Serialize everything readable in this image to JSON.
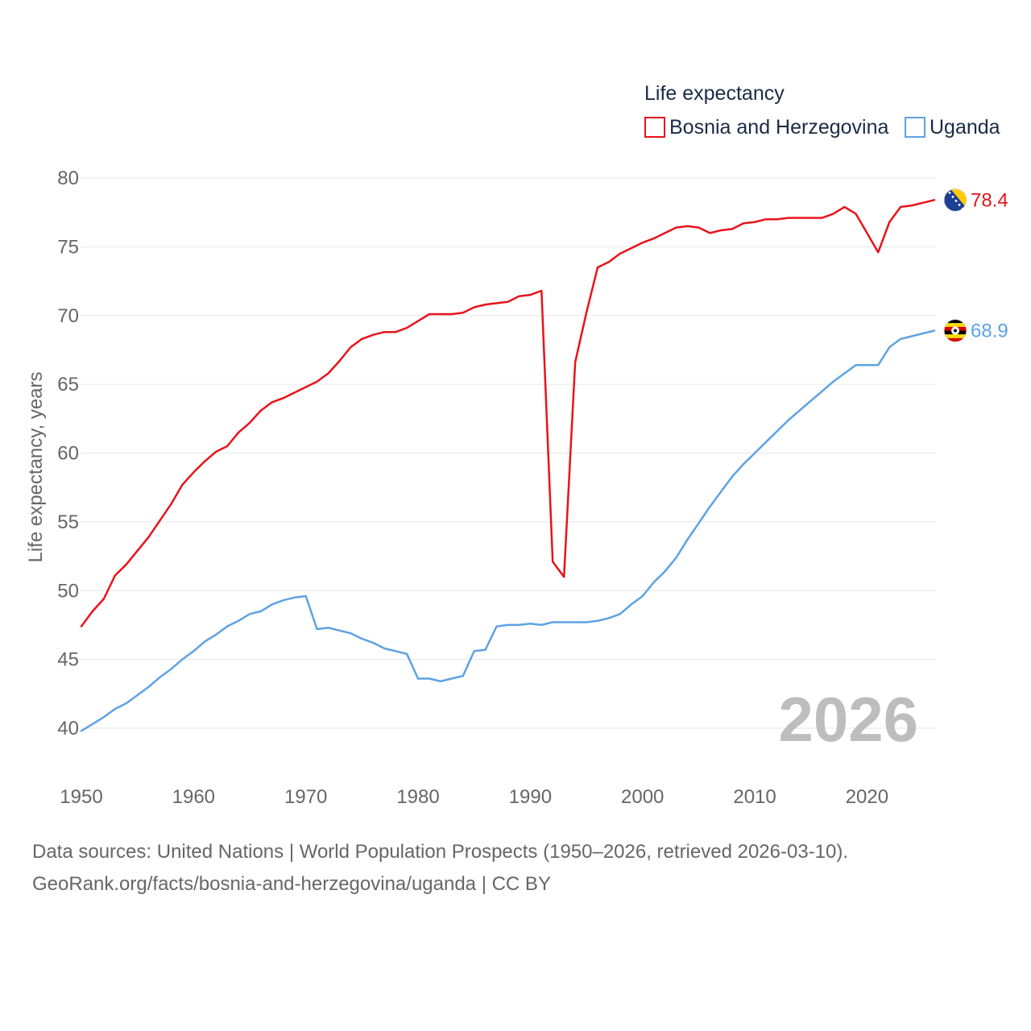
{
  "chart_data": {
    "type": "line",
    "legend_title": "Life expectancy",
    "ylabel": "Life expectancy, years",
    "xlabel": "",
    "current_year": "2026",
    "xlim": [
      1950,
      2026
    ],
    "ylim": [
      38,
      80
    ],
    "yticks": [
      40,
      45,
      50,
      55,
      60,
      65,
      70,
      75,
      80
    ],
    "xticks": [
      1950,
      1960,
      1970,
      1980,
      1990,
      2000,
      2010,
      2020
    ],
    "legend_position": "top-right",
    "series": [
      {
        "name": "Bosnia and Herzegovina",
        "color": "#e8131b",
        "end_label": "78.4",
        "flag_icon": "bosnia-flag-icon",
        "x": [
          1950,
          1951,
          1952,
          1953,
          1954,
          1955,
          1956,
          1957,
          1958,
          1959,
          1960,
          1961,
          1962,
          1963,
          1964,
          1965,
          1966,
          1967,
          1968,
          1969,
          1970,
          1971,
          1972,
          1973,
          1974,
          1975,
          1976,
          1977,
          1978,
          1979,
          1980,
          1981,
          1982,
          1983,
          1984,
          1985,
          1986,
          1987,
          1988,
          1989,
          1990,
          1991,
          1992,
          1993,
          1994,
          1995,
          1996,
          1997,
          1998,
          1999,
          2000,
          2001,
          2002,
          2003,
          2004,
          2005,
          2006,
          2007,
          2008,
          2009,
          2010,
          2011,
          2012,
          2013,
          2014,
          2015,
          2016,
          2017,
          2018,
          2019,
          2020,
          2021,
          2022,
          2023,
          2024,
          2025,
          2026
        ],
        "values": [
          47.4,
          48.5,
          49.4,
          51.1,
          51.9,
          52.9,
          53.9,
          55.1,
          56.3,
          57.7,
          58.6,
          59.4,
          60.1,
          60.5,
          61.5,
          62.2,
          63.1,
          63.7,
          64.0,
          64.4,
          64.8,
          65.2,
          65.8,
          66.7,
          67.7,
          68.3,
          68.6,
          68.8,
          68.8,
          69.1,
          69.6,
          70.1,
          70.1,
          70.1,
          70.2,
          70.6,
          70.8,
          70.9,
          71.0,
          71.4,
          71.5,
          71.8,
          52.1,
          51.0,
          66.6,
          70.2,
          73.5,
          73.9,
          74.5,
          74.9,
          75.3,
          75.6,
          76.0,
          76.4,
          76.5,
          76.4,
          76.0,
          76.2,
          76.3,
          76.7,
          76.8,
          77.0,
          77.0,
          77.1,
          77.1,
          77.1,
          77.1,
          77.4,
          77.9,
          77.4,
          76.0,
          74.6,
          76.8,
          77.9,
          78.0,
          78.2,
          78.4
        ]
      },
      {
        "name": "Uganda",
        "color": "#5ea2e3",
        "end_label": "68.9",
        "flag_icon": "uganda-flag-icon",
        "x": [
          1950,
          1951,
          1952,
          1953,
          1954,
          1955,
          1956,
          1957,
          1958,
          1959,
          1960,
          1961,
          1962,
          1963,
          1964,
          1965,
          1966,
          1967,
          1968,
          1969,
          1970,
          1971,
          1972,
          1973,
          1974,
          1975,
          1976,
          1977,
          1978,
          1979,
          1980,
          1981,
          1982,
          1983,
          1984,
          1985,
          1986,
          1987,
          1988,
          1989,
          1990,
          1991,
          1992,
          1993,
          1994,
          1995,
          1996,
          1997,
          1998,
          1999,
          2000,
          2001,
          2002,
          2003,
          2004,
          2005,
          2006,
          2007,
          2008,
          2009,
          2010,
          2011,
          2012,
          2013,
          2014,
          2015,
          2016,
          2017,
          2018,
          2019,
          2020,
          2021,
          2022,
          2023,
          2024,
          2025,
          2026
        ],
        "values": [
          39.8,
          40.3,
          40.8,
          41.4,
          41.8,
          42.4,
          43.0,
          43.7,
          44.3,
          45.0,
          45.6,
          46.3,
          46.8,
          47.4,
          47.8,
          48.3,
          48.5,
          49.0,
          49.3,
          49.5,
          49.6,
          47.2,
          47.3,
          47.1,
          46.9,
          46.5,
          46.2,
          45.8,
          45.6,
          45.4,
          43.6,
          43.6,
          43.4,
          43.6,
          43.8,
          45.6,
          45.7,
          47.4,
          47.5,
          47.5,
          47.6,
          47.5,
          47.7,
          47.7,
          47.7,
          47.7,
          47.8,
          48.0,
          48.3,
          49.0,
          49.6,
          50.6,
          51.4,
          52.4,
          53.7,
          54.9,
          56.1,
          57.2,
          58.3,
          59.2,
          60.0,
          60.8,
          61.6,
          62.4,
          63.1,
          63.8,
          64.5,
          65.2,
          65.8,
          66.4,
          66.4,
          66.4,
          67.7,
          68.3,
          68.5,
          68.7,
          68.9
        ]
      }
    ]
  },
  "footer": {
    "source": "Data sources: United Nations | World Population Prospects (1950–2026, retrieved 2026-03-10).",
    "credit": "GeoRank.org/facts/bosnia-and-herzegovina/uganda | CC BY"
  }
}
